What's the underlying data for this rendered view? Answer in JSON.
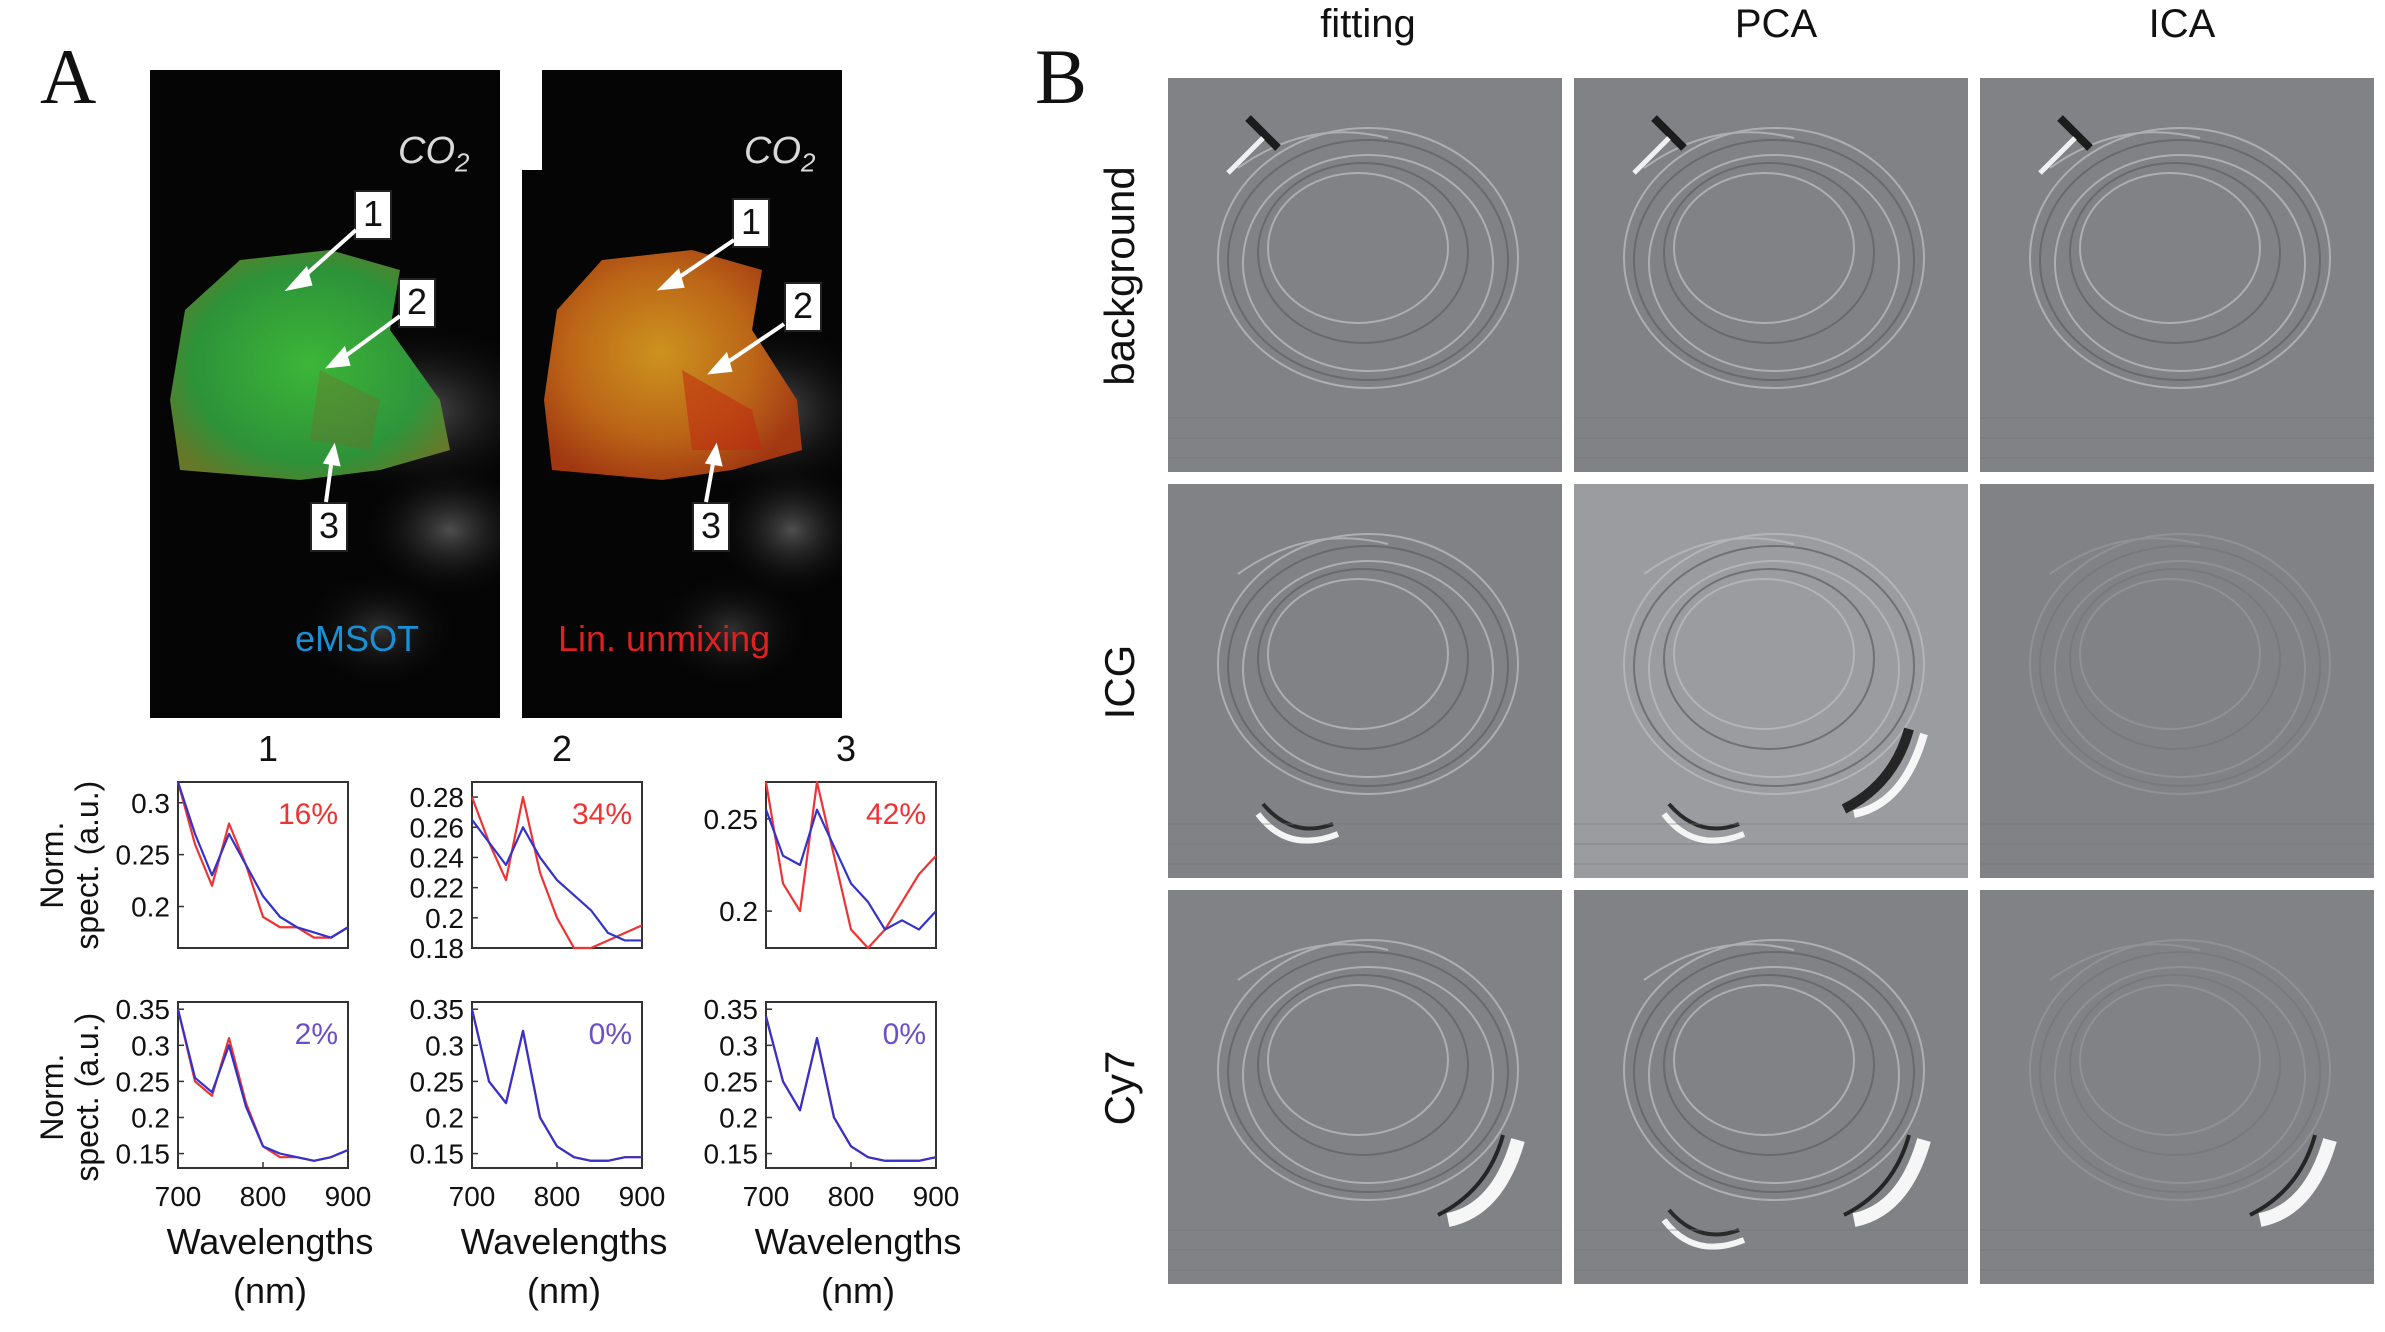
{
  "panel_a": {
    "letter": "A",
    "co2_label": "CO",
    "co2_sub": "2",
    "markers": [
      "1",
      "2",
      "3"
    ],
    "left_method": "eMSOT",
    "right_method": "Lin. unmixing",
    "column_numbers": [
      "1",
      "2",
      "3"
    ],
    "ylabel_line1": "Norm.",
    "ylabel_line2": "spect. (a.u.)",
    "xlabel_line1": "Wavelengths",
    "xlabel_line2": "(nm)"
  },
  "panel_b": {
    "letter": "B",
    "columns": [
      "fitting",
      "PCA",
      "ICA"
    ],
    "rows": [
      "background",
      "ICG",
      "Cy7"
    ]
  },
  "colors": {
    "red": "#ee3333",
    "blue": "#3333cc",
    "purple": "#6a4fc8",
    "emsot_text": "#1a8fd6",
    "linunmix_text": "#e02020"
  },
  "chart_data": [
    {
      "type": "line",
      "title": "1",
      "x": [
        700,
        720,
        740,
        760,
        780,
        800,
        820,
        840,
        860,
        880,
        900
      ],
      "xlim": [
        700,
        900
      ],
      "yticks": [
        "0.3",
        "0.25",
        "0.2"
      ],
      "ylim": [
        0.16,
        0.32
      ],
      "annotation": "16%",
      "annotation_color": "red",
      "series": [
        {
          "name": "red",
          "values": [
            0.32,
            0.26,
            0.22,
            0.28,
            0.24,
            0.19,
            0.18,
            0.18,
            0.17,
            0.17,
            0.18
          ]
        },
        {
          "name": "blue",
          "values": [
            0.32,
            0.27,
            0.23,
            0.27,
            0.24,
            0.21,
            0.19,
            0.18,
            0.175,
            0.17,
            0.18
          ]
        }
      ]
    },
    {
      "type": "line",
      "title": "2",
      "x": [
        700,
        720,
        740,
        760,
        780,
        800,
        820,
        840,
        860,
        880,
        900
      ],
      "xlim": [
        700,
        900
      ],
      "yticks": [
        "0.28",
        "0.26",
        "0.24",
        "0.22",
        "0.2",
        "0.18"
      ],
      "ylim": [
        0.18,
        0.29
      ],
      "annotation": "34%",
      "annotation_color": "red",
      "series": [
        {
          "name": "red",
          "values": [
            0.28,
            0.25,
            0.225,
            0.28,
            0.23,
            0.2,
            0.18,
            0.18,
            0.185,
            0.19,
            0.195
          ]
        },
        {
          "name": "blue",
          "values": [
            0.265,
            0.25,
            0.235,
            0.26,
            0.24,
            0.225,
            0.215,
            0.205,
            0.19,
            0.185,
            0.185
          ]
        }
      ]
    },
    {
      "type": "line",
      "title": "3",
      "x": [
        700,
        720,
        740,
        760,
        780,
        800,
        820,
        840,
        860,
        880,
        900
      ],
      "xlim": [
        700,
        900
      ],
      "yticks": [
        "0.25",
        "0.2"
      ],
      "ylim": [
        0.18,
        0.27
      ],
      "annotation": "42%",
      "annotation_color": "red",
      "series": [
        {
          "name": "red",
          "values": [
            0.27,
            0.215,
            0.2,
            0.27,
            0.23,
            0.19,
            0.18,
            0.19,
            0.205,
            0.22,
            0.23
          ]
        },
        {
          "name": "blue",
          "values": [
            0.255,
            0.23,
            0.225,
            0.255,
            0.235,
            0.215,
            0.205,
            0.19,
            0.195,
            0.19,
            0.2
          ]
        }
      ]
    },
    {
      "type": "line",
      "title": "",
      "x": [
        700,
        720,
        740,
        760,
        780,
        800,
        820,
        840,
        860,
        880,
        900
      ],
      "xlim": [
        700,
        900
      ],
      "yticks": [
        "0.35",
        "0.3",
        "0.25",
        "0.2",
        "0.15"
      ],
      "ylim": [
        0.13,
        0.36
      ],
      "annotation": "2%",
      "annotation_color": "purple",
      "series": [
        {
          "name": "red",
          "values": [
            0.35,
            0.25,
            0.23,
            0.31,
            0.22,
            0.16,
            0.145,
            0.145,
            0.14,
            0.145,
            0.155
          ]
        },
        {
          "name": "blue",
          "values": [
            0.35,
            0.255,
            0.235,
            0.3,
            0.215,
            0.16,
            0.15,
            0.145,
            0.14,
            0.145,
            0.155
          ]
        }
      ]
    },
    {
      "type": "line",
      "title": "",
      "x": [
        700,
        720,
        740,
        760,
        780,
        800,
        820,
        840,
        860,
        880,
        900
      ],
      "xlim": [
        700,
        900
      ],
      "yticks": [
        "0.35",
        "0.3",
        "0.25",
        "0.2",
        "0.15"
      ],
      "ylim": [
        0.13,
        0.36
      ],
      "annotation": "0%",
      "annotation_color": "purple",
      "series": [
        {
          "name": "red",
          "values": [
            0.35,
            0.25,
            0.22,
            0.32,
            0.2,
            0.16,
            0.145,
            0.14,
            0.14,
            0.145,
            0.145
          ]
        },
        {
          "name": "blue",
          "values": [
            0.35,
            0.25,
            0.22,
            0.32,
            0.2,
            0.16,
            0.145,
            0.14,
            0.14,
            0.145,
            0.145
          ]
        }
      ]
    },
    {
      "type": "line",
      "title": "",
      "x": [
        700,
        720,
        740,
        760,
        780,
        800,
        820,
        840,
        860,
        880,
        900
      ],
      "xlim": [
        700,
        900
      ],
      "yticks": [
        "0.35",
        "0.3",
        "0.25",
        "0.2",
        "0.15"
      ],
      "ylim": [
        0.13,
        0.36
      ],
      "annotation": "0%",
      "annotation_color": "purple",
      "series": [
        {
          "name": "red",
          "values": [
            0.34,
            0.25,
            0.21,
            0.31,
            0.2,
            0.16,
            0.145,
            0.14,
            0.14,
            0.14,
            0.145
          ]
        },
        {
          "name": "blue",
          "values": [
            0.34,
            0.25,
            0.21,
            0.31,
            0.2,
            0.16,
            0.145,
            0.14,
            0.14,
            0.14,
            0.145
          ]
        }
      ]
    }
  ]
}
